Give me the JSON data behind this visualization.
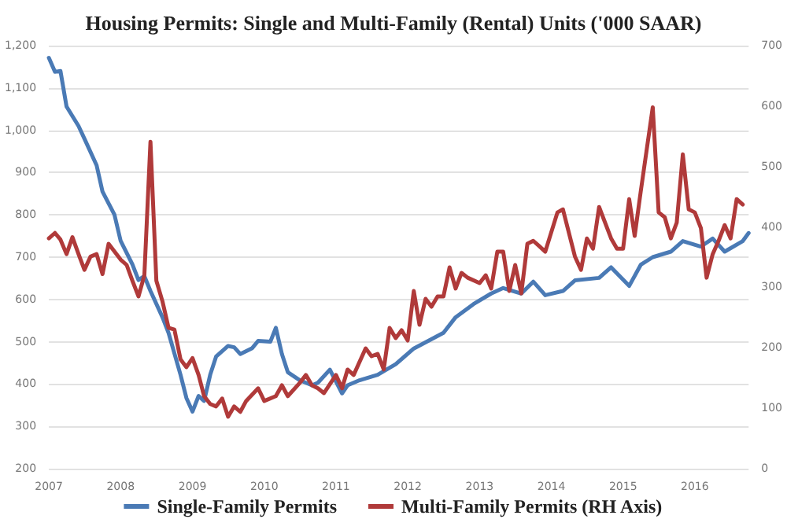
{
  "chart_data": {
    "type": "line",
    "title": "Housing Permits: Single and Multi-Family (Rental) Units ('000 SAAR)",
    "xlim": [
      "2007-01",
      "2016-10"
    ],
    "xticks": [
      {
        "value": "2007",
        "label": "2007"
      },
      {
        "value": "2008",
        "label": "2008"
      },
      {
        "value": "2009",
        "label": "2009"
      },
      {
        "value": "2010",
        "label": "2010"
      },
      {
        "value": "2011",
        "label": "2011"
      },
      {
        "value": "2012",
        "label": "2012"
      },
      {
        "value": "2013",
        "label": "2013"
      },
      {
        "value": "2014",
        "label": "2014"
      },
      {
        "value": "2015",
        "label": "2015"
      },
      {
        "value": "2016",
        "label": "2016"
      }
    ],
    "ylim": [
      200,
      1200
    ],
    "yticks": [
      200,
      300,
      400,
      500,
      600,
      700,
      800,
      900,
      {
        "value": 1000,
        "label": "1,000"
      },
      {
        "value": 1100,
        "label": "1,100"
      },
      {
        "value": 1200,
        "label": "1,200"
      }
    ],
    "y2lim": [
      0,
      700
    ],
    "y2ticks": [
      0,
      100,
      200,
      300,
      400,
      500,
      600,
      700
    ],
    "grid": "y",
    "legend": "bottom",
    "marker": "none",
    "line_style": "solid",
    "series": [
      {
        "name": "Single-Family Permits",
        "color": "#4a7ab5",
        "x": [
          "2007-01",
          "2007-02",
          "2007-03",
          "2007-04",
          "2007-06",
          "2007-07",
          "2007-09",
          "2007-10",
          "2007-12",
          "2008-01",
          "2008-03",
          "2008-04",
          "2008-05",
          "2008-06",
          "2008-08",
          "2008-09",
          "2008-11",
          "2008-12",
          "2009-01",
          "2009-02",
          "2009-03",
          "2009-04",
          "2009-05",
          "2009-07",
          "2009-08",
          "2009-09",
          "2009-11",
          "2009-12",
          "2010-02",
          "2010-03",
          "2010-04",
          "2010-05",
          "2010-07",
          "2010-09",
          "2010-10",
          "2010-12",
          "2011-02",
          "2011-03",
          "2011-05",
          "2011-08",
          "2011-11",
          "2012-02",
          "2012-07",
          "2012-09",
          "2012-12",
          "2013-03",
          "2013-05",
          "2013-08",
          "2013-10",
          "2013-12",
          "2014-03",
          "2014-05",
          "2014-09",
          "2014-11",
          "2015-02",
          "2015-04",
          "2015-06",
          "2015-09",
          "2015-11",
          "2016-02",
          "2016-04",
          "2016-06",
          "2016-09",
          "2016-10"
        ],
        "values": [
          1171,
          1138,
          1140,
          1056,
          1010,
          980,
          917,
          855,
          800,
          739,
          683,
          646,
          655,
          620,
          558,
          521,
          422,
          367,
          335,
          372,
          360,
          422,
          465,
          490,
          487,
          471,
          485,
          502,
          500,
          533,
          471,
          428,
          409,
          397,
          403,
          434,
          378,
          397,
          409,
          422,
          447,
          484,
          521,
          558,
          589,
          614,
          627,
          614,
          642,
          610,
          620,
          645,
          651,
          676,
          632,
          682,
          700,
          713,
          738,
          725,
          744,
          713,
          738,
          757
        ]
      },
      {
        "name": "Multi-Family Permits (RH Axis)",
        "color": "#b03a3a",
        "axis": "y2",
        "x": [
          "2007-01",
          "2007-02",
          "2007-03",
          "2007-04",
          "2007-05",
          "2007-06",
          "2007-07",
          "2007-08",
          "2007-09",
          "2007-10",
          "2007-11",
          "2008-01",
          "2008-02",
          "2008-03",
          "2008-04",
          "2008-05",
          "2008-06",
          "2008-07",
          "2008-08",
          "2008-09",
          "2008-10",
          "2008-11",
          "2008-12",
          "2009-01",
          "2009-02",
          "2009-03",
          "2009-04",
          "2009-05",
          "2009-06",
          "2009-07",
          "2009-08",
          "2009-09",
          "2009-10",
          "2009-12",
          "2010-01",
          "2010-03",
          "2010-04",
          "2010-05",
          "2010-07",
          "2010-08",
          "2010-09",
          "2010-10",
          "2010-11",
          "2011-01",
          "2011-02",
          "2011-03",
          "2011-04",
          "2011-06",
          "2011-07",
          "2011-08",
          "2011-09",
          "2011-10",
          "2011-11",
          "2011-12",
          "2012-01",
          "2012-02",
          "2012-03",
          "2012-04",
          "2012-05",
          "2012-06",
          "2012-07",
          "2012-08",
          "2012-09",
          "2012-10",
          "2012-11",
          "2013-01",
          "2013-02",
          "2013-03",
          "2013-04",
          "2013-05",
          "2013-06",
          "2013-07",
          "2013-08",
          "2013-09",
          "2013-10",
          "2013-11",
          "2013-12",
          "2014-02",
          "2014-03",
          "2014-05",
          "2014-06",
          "2014-07",
          "2014-08",
          "2014-09",
          "2014-11",
          "2014-12",
          "2015-01",
          "2015-02",
          "2015-03",
          "2015-04",
          "2015-06",
          "2015-07",
          "2015-08",
          "2015-09",
          "2015-10",
          "2015-11",
          "2015-12",
          "2016-01",
          "2016-02",
          "2016-03",
          "2016-04",
          "2016-05",
          "2016-06",
          "2016-07",
          "2016-08",
          "2016-09"
        ],
        "values": [
          381,
          390,
          379,
          355,
          383,
          355,
          329,
          351,
          355,
          322,
          372,
          346,
          337,
          311,
          285,
          320,
          541,
          311,
          277,
          233,
          230,
          181,
          168,
          183,
          155,
          120,
          107,
          103,
          116,
          86,
          103,
          94,
          112,
          133,
          112,
          120,
          138,
          120,
          142,
          155,
          138,
          133,
          125,
          155,
          133,
          164,
          155,
          199,
          186,
          190,
          164,
          233,
          216,
          229,
          212,
          294,
          238,
          281,
          268,
          285,
          285,
          333,
          298,
          324,
          316,
          307,
          320,
          298,
          359,
          359,
          294,
          337,
          290,
          372,
          377,
          368,
          359,
          424,
          429,
          351,
          329,
          381,
          364,
          433,
          381,
          364,
          364,
          446,
          385,
          459,
          598,
          424,
          416,
          381,
          407,
          520,
          429,
          424,
          398,
          316,
          355,
          377,
          403,
          381,
          446,
          437
        ]
      }
    ]
  }
}
